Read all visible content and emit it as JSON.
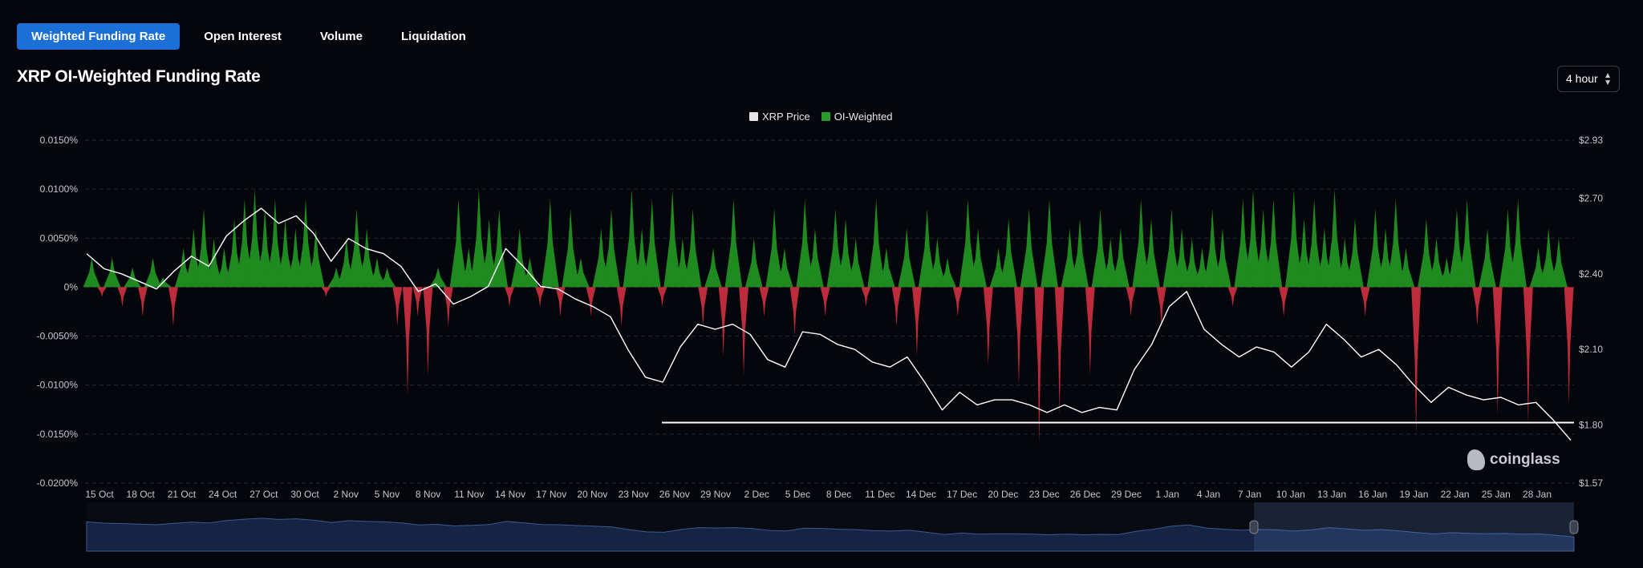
{
  "tabs": [
    {
      "label": "Weighted Funding Rate",
      "active": true
    },
    {
      "label": "Open Interest",
      "active": false
    },
    {
      "label": "Volume",
      "active": false
    },
    {
      "label": "Liquidation",
      "active": false
    }
  ],
  "title": "XRP OI-Weighted Funding Rate",
  "interval": {
    "value": "4 hour"
  },
  "legend": {
    "price_label": "XRP Price",
    "price_color": "#e6e6e6",
    "oi_label": "OI-Weighted",
    "oi_color": "#2a9a2a"
  },
  "watermark": "coinglass",
  "colors": {
    "positive": "#1f8a1f",
    "negative": "#bd2c3c",
    "price_line": "#ffffff",
    "grid": "#262833",
    "axis_text": "#c6c7cc",
    "navigator_fill": "#1e3a6a",
    "navigator_line": "#3a5a95"
  },
  "chart_data": {
    "type": "area",
    "left_axis": {
      "ticks": [
        "0.0150%",
        "0.0100%",
        "0.0050%",
        "0%",
        "-0.0050%",
        "-0.0100%",
        "-0.0150%",
        "-0.0200%"
      ],
      "range": [
        -0.02,
        0.015
      ]
    },
    "right_axis": {
      "ticks": [
        "$2.93",
        "$2.70",
        "$2.40",
        "$2.10",
        "$1.80",
        "$1.57"
      ],
      "range": [
        1.57,
        2.93
      ]
    },
    "x_ticks": [
      "15 Oct",
      "18 Oct",
      "21 Oct",
      "24 Oct",
      "27 Oct",
      "30 Oct",
      "2 Nov",
      "5 Nov",
      "8 Nov",
      "11 Nov",
      "14 Nov",
      "17 Nov",
      "20 Nov",
      "23 Nov",
      "26 Nov",
      "29 Nov",
      "2 Dec",
      "5 Dec",
      "8 Dec",
      "11 Dec",
      "14 Dec",
      "17 Dec",
      "20 Dec",
      "23 Dec",
      "26 Dec",
      "29 Dec",
      "1 Jan",
      "4 Jan",
      "7 Jan",
      "10 Jan",
      "13 Jan",
      "16 Jan",
      "19 Jan",
      "22 Jan",
      "25 Jan",
      "28 Jan"
    ],
    "series": [
      {
        "name": "OI-Weighted",
        "axis": "left",
        "unit": "%",
        "values": [
          0.003,
          -0.001,
          0.003,
          -0.002,
          0.002,
          -0.003,
          0.003,
          0.001,
          -0.004,
          0.004,
          0.006,
          0.008,
          0.005,
          0.004,
          0.007,
          0.009,
          0.01,
          0.008,
          0.009,
          0.007,
          0.006,
          0.009,
          0.006,
          -0.001,
          0.002,
          0.005,
          0.008,
          0.006,
          0.003,
          0.002,
          -0.004,
          -0.011,
          -0.003,
          -0.009,
          0.002,
          -0.004,
          0.009,
          0.004,
          0.01,
          0.007,
          0.008,
          -0.002,
          0.006,
          0.003,
          -0.002,
          0.009,
          -0.003,
          0.008,
          0.003,
          -0.003,
          0.006,
          0.008,
          -0.004,
          0.01,
          0.006,
          0.009,
          -0.002,
          0.01,
          0.005,
          0.008,
          -0.004,
          0.004,
          -0.007,
          0.009,
          -0.009,
          0.005,
          -0.003,
          0.008,
          0.004,
          -0.005,
          0.009,
          0.006,
          -0.003,
          0.008,
          0.007,
          0.005,
          -0.002,
          0.009,
          0.004,
          -0.004,
          0.006,
          -0.007,
          0.008,
          0.005,
          0.003,
          -0.003,
          0.009,
          0.006,
          -0.008,
          0.004,
          0.007,
          -0.01,
          0.008,
          -0.016,
          0.009,
          -0.013,
          0.006,
          0.007,
          -0.009,
          0.008,
          0.005,
          0.006,
          -0.003,
          0.009,
          0.007,
          -0.004,
          0.008,
          0.006,
          0.005,
          0.004,
          0.008,
          0.006,
          -0.002,
          0.009,
          0.01,
          0.008,
          0.009,
          -0.003,
          0.01,
          0.007,
          0.009,
          0.006,
          0.01,
          0.005,
          0.007,
          -0.003,
          0.008,
          0.006,
          0.009,
          0.004,
          -0.015,
          0.007,
          0.005,
          0.003,
          0.008,
          0.009,
          -0.004,
          0.006,
          -0.013,
          0.008,
          0.009,
          -0.014,
          0.004,
          0.006,
          0.005,
          -0.012
        ]
      },
      {
        "name": "XRP Price",
        "axis": "right",
        "unit": "$",
        "values": [
          2.48,
          2.42,
          2.4,
          2.37,
          2.34,
          2.41,
          2.47,
          2.43,
          2.55,
          2.61,
          2.66,
          2.6,
          2.63,
          2.56,
          2.45,
          2.54,
          2.5,
          2.48,
          2.43,
          2.33,
          2.36,
          2.28,
          2.31,
          2.35,
          2.5,
          2.43,
          2.35,
          2.34,
          2.3,
          2.27,
          2.23,
          2.1,
          1.99,
          1.97,
          2.11,
          2.2,
          2.18,
          2.2,
          2.16,
          2.06,
          2.03,
          2.17,
          2.16,
          2.12,
          2.1,
          2.05,
          2.03,
          2.07,
          1.97,
          1.86,
          1.93,
          1.88,
          1.9,
          1.9,
          1.88,
          1.85,
          1.88,
          1.85,
          1.87,
          1.86,
          2.02,
          2.12,
          2.27,
          2.33,
          2.18,
          2.12,
          2.07,
          2.11,
          2.09,
          2.03,
          2.09,
          2.2,
          2.14,
          2.07,
          2.1,
          2.04,
          1.96,
          1.89,
          1.95,
          1.92,
          1.9,
          1.91,
          1.88,
          1.89,
          1.82,
          1.74
        ]
      }
    ],
    "reference_line": {
      "axis": "right",
      "value": 1.81
    }
  }
}
